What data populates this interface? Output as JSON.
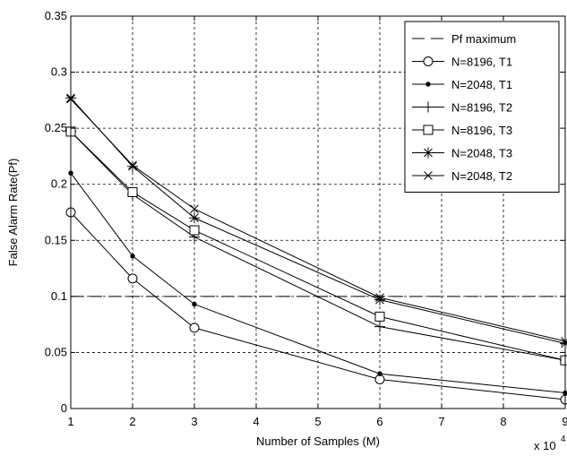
{
  "chart_data": {
    "type": "line",
    "title": "",
    "xlabel": "Number of Samples (M)",
    "ylabel": "False Alarm Rate(Pf)",
    "x_multiplier_label": "x 10",
    "x_multiplier_exponent": "4",
    "xlim": [
      1,
      9
    ],
    "ylim": [
      0,
      0.35
    ],
    "x_ticks": [
      1,
      2,
      3,
      4,
      5,
      6,
      7,
      8,
      9
    ],
    "y_ticks": [
      0,
      0.05,
      0.1,
      0.15,
      0.2,
      0.25,
      0.3,
      0.35
    ],
    "x_tick_labels": [
      "1",
      "2",
      "3",
      "4",
      "5",
      "6",
      "7",
      "8",
      "9"
    ],
    "y_tick_labels": [
      "0",
      "0.05",
      "0.1",
      "0.15",
      "0.2",
      "0.25",
      "0.3",
      "0.35"
    ],
    "grid": true,
    "legend_position": "top-right",
    "series": [
      {
        "name": "Pf maximum",
        "marker": "none",
        "dashed": true,
        "x": [
          1,
          9
        ],
        "y": [
          0.1,
          0.1
        ]
      },
      {
        "name": "N=8196, T1",
        "marker": "circle",
        "x": [
          1,
          2,
          3,
          6,
          9
        ],
        "y": [
          0.175,
          0.116,
          0.072,
          0.026,
          0.008
        ]
      },
      {
        "name": "N=2048, T1",
        "marker": "dot",
        "x": [
          1,
          2,
          3,
          6,
          9
        ],
        "y": [
          0.21,
          0.136,
          0.093,
          0.031,
          0.014
        ]
      },
      {
        "name": "N=8196, T2",
        "marker": "plus",
        "x": [
          1,
          2,
          3,
          6,
          9
        ],
        "y": [
          0.247,
          0.191,
          0.153,
          0.073,
          0.043
        ]
      },
      {
        "name": "N=8196, T3",
        "marker": "square",
        "x": [
          1,
          2,
          3,
          6,
          9
        ],
        "y": [
          0.247,
          0.193,
          0.159,
          0.082,
          0.043
        ]
      },
      {
        "name": "N=2048, T3",
        "marker": "star",
        "x": [
          1,
          2,
          3,
          6,
          9
        ],
        "y": [
          0.277,
          0.216,
          0.17,
          0.097,
          0.058
        ]
      },
      {
        "name": "N=2048, T2",
        "marker": "x",
        "x": [
          1,
          2,
          3,
          6,
          9
        ],
        "y": [
          0.276,
          0.217,
          0.178,
          0.099,
          0.06
        ]
      }
    ]
  }
}
